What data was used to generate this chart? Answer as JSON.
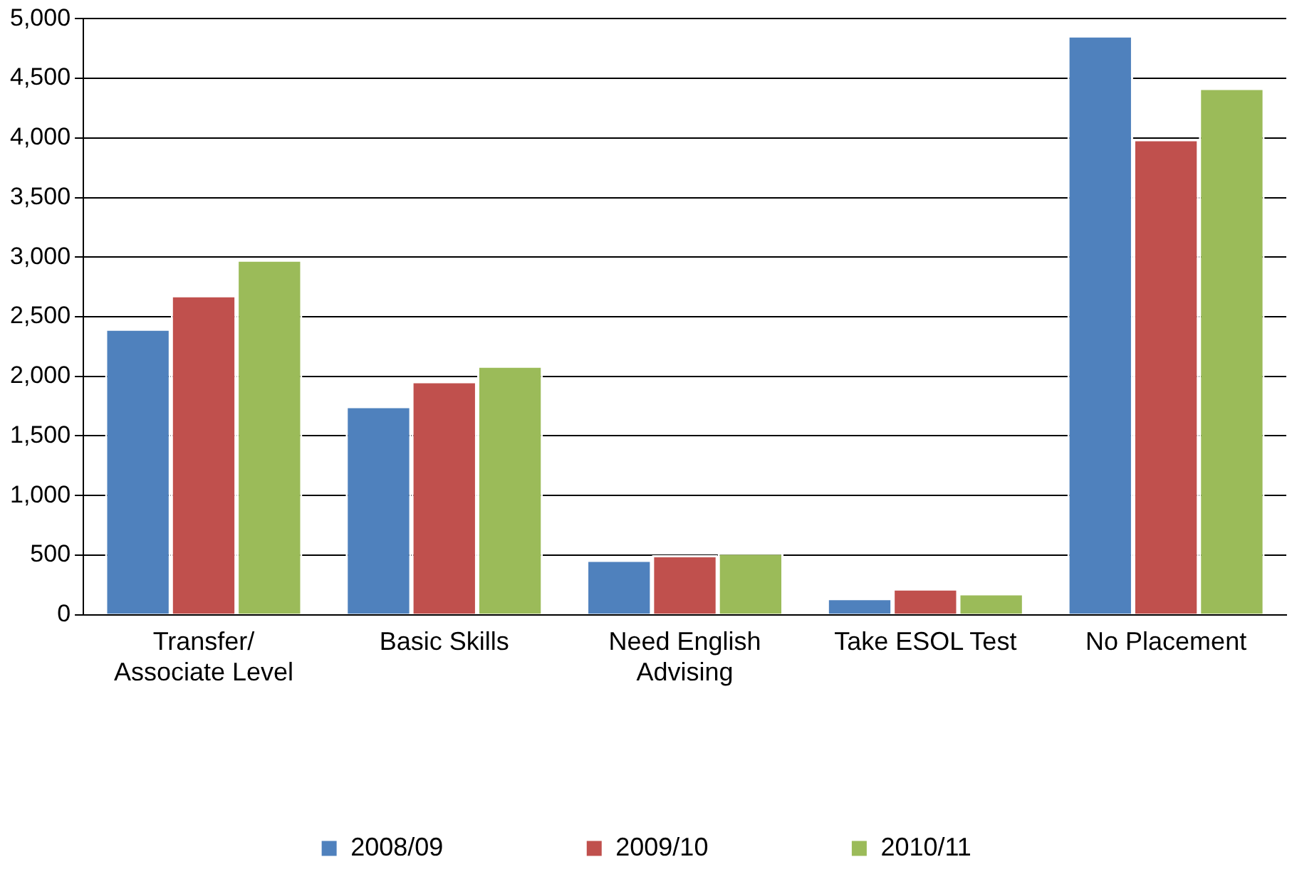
{
  "chart_data": {
    "type": "bar",
    "categories": [
      "Transfer/ Associate Level",
      "Basic Skills",
      "Need English Advising",
      "Take ESOL Test",
      "No Placement"
    ],
    "series": [
      {
        "name": "2008/09",
        "color": "#4f81bd",
        "values": [
          2400,
          1750,
          460,
          140,
          4860
        ]
      },
      {
        "name": "2009/10",
        "color": "#c0504d",
        "values": [
          2680,
          1960,
          500,
          220,
          3990
        ]
      },
      {
        "name": "2010/11",
        "color": "#9bbb59",
        "values": [
          2980,
          2090,
          520,
          180,
          4420
        ]
      }
    ],
    "ylim": [
      0,
      5000
    ],
    "yticks": [
      0,
      500,
      {
        "value": 1000,
        "label": "1,000"
      },
      {
        "value": 1500,
        "label": "1,500"
      },
      {
        "value": 2000,
        "label": "2,000"
      },
      {
        "value": 2500,
        "label": "2,500"
      },
      {
        "value": 3000,
        "label": "3,000"
      },
      {
        "value": 3500,
        "label": "3,500"
      },
      {
        "value": 4000,
        "label": "4,000"
      },
      {
        "value": 4500,
        "label": "4,500"
      },
      {
        "value": 5000,
        "label": "5,000"
      }
    ],
    "grid": "y",
    "legend": "bottom"
  }
}
